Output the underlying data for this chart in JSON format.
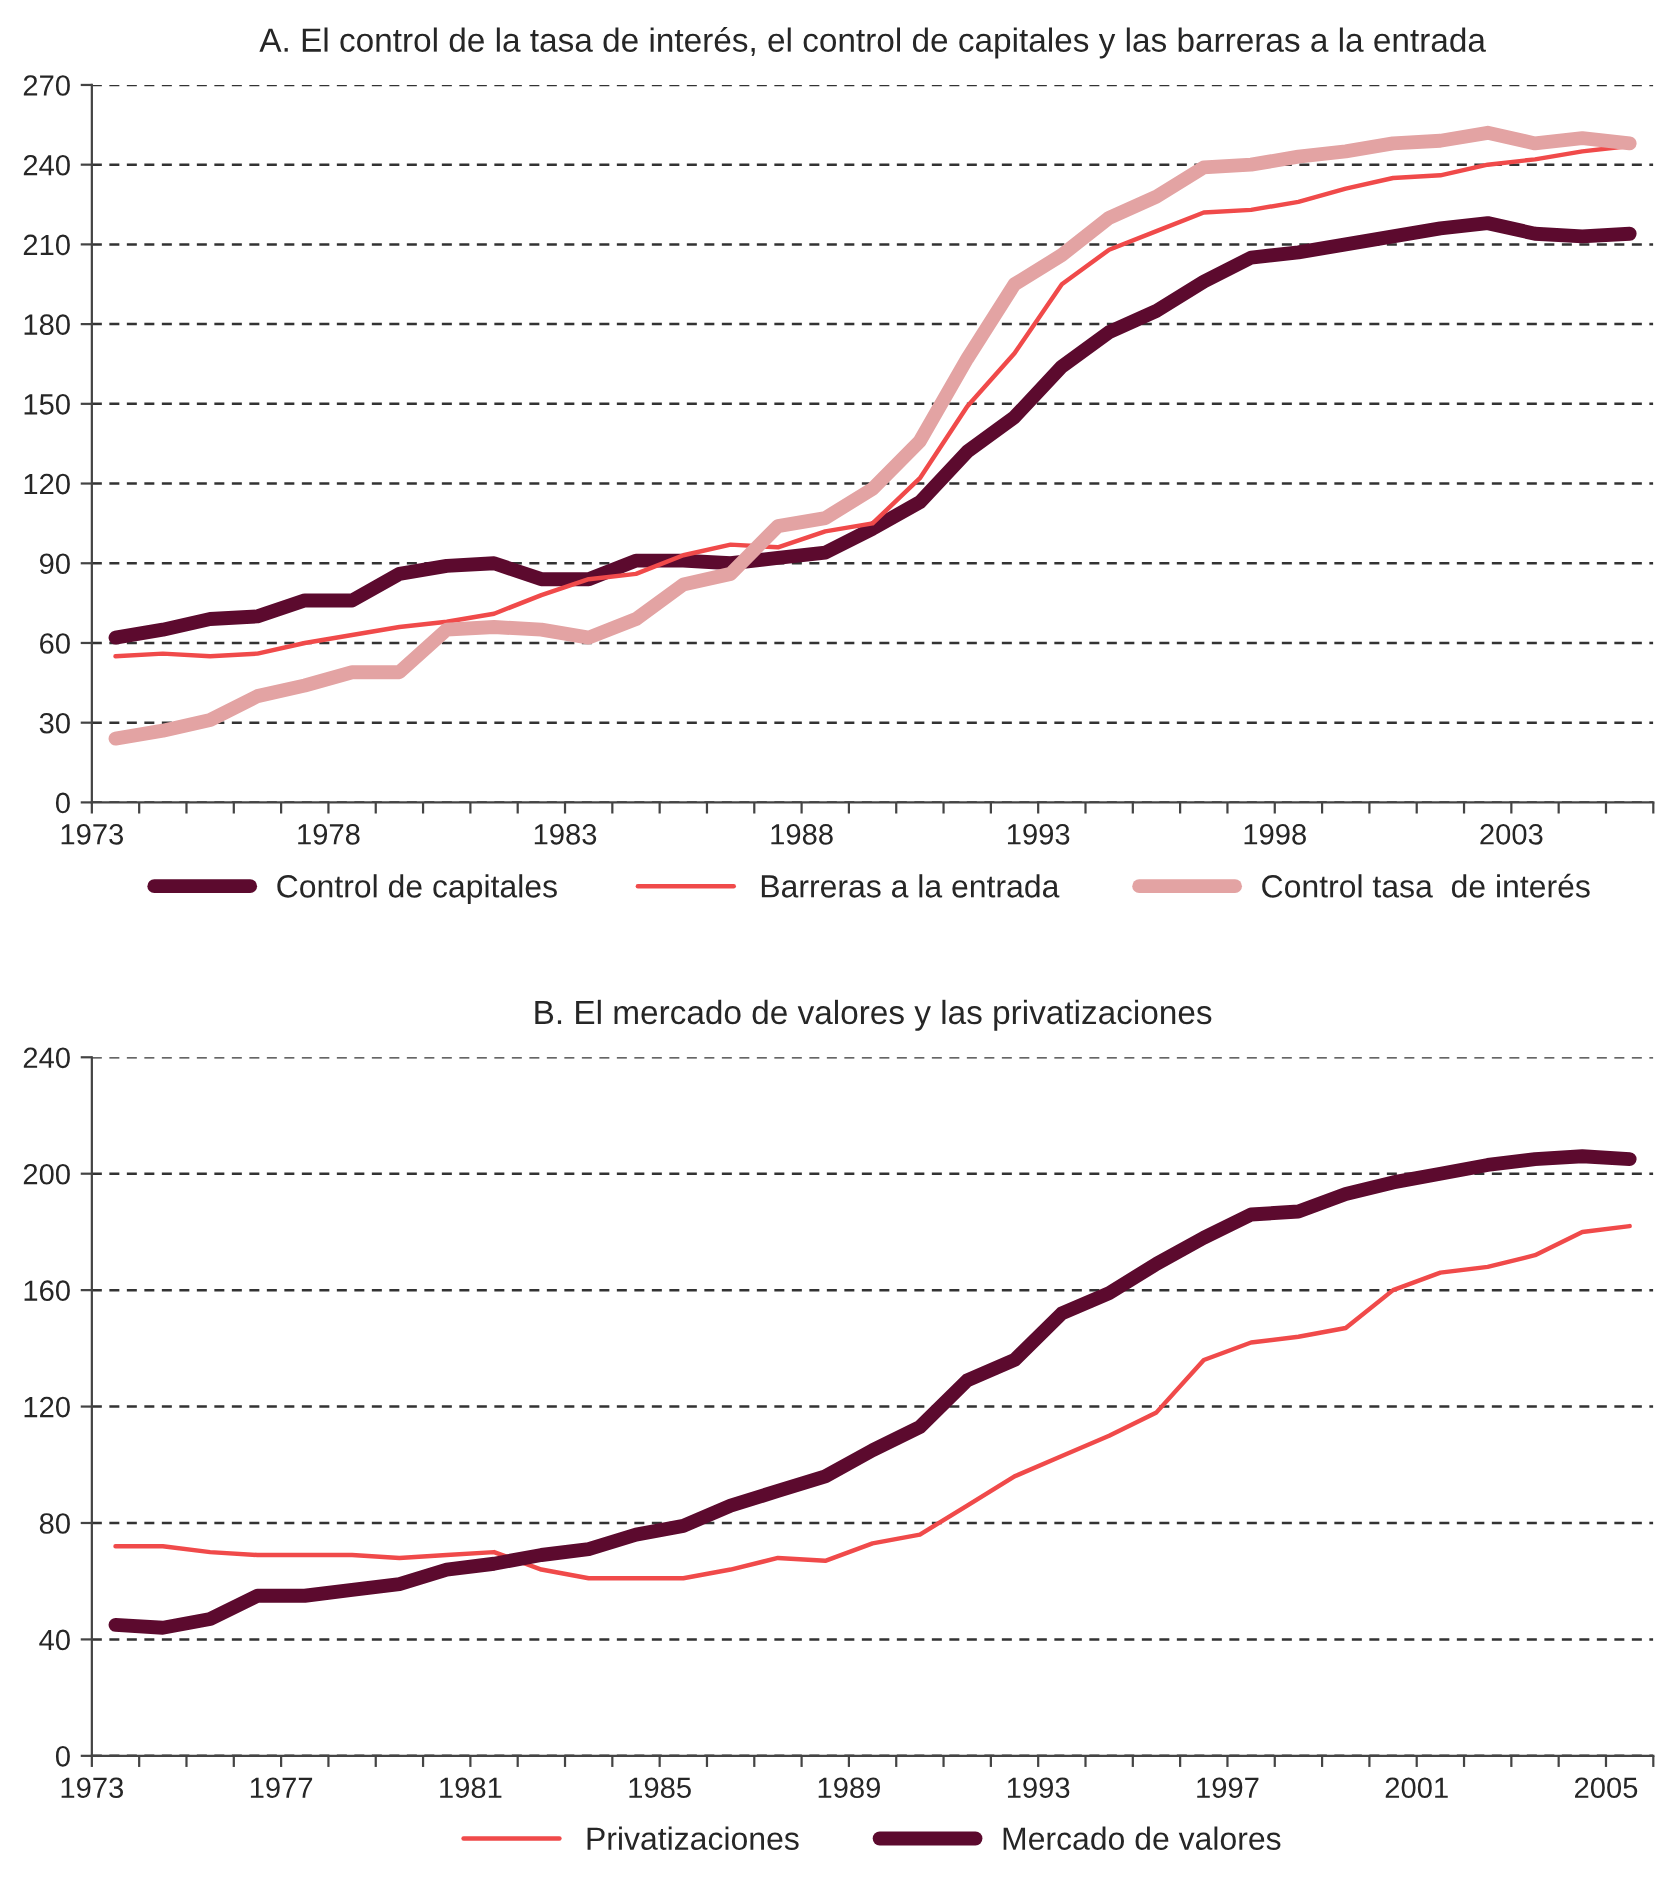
{
  "chart_data": [
    {
      "type": "line",
      "title": "A. El control de la tasa de interés, el control de capitales y las barreras a la entrada",
      "x": [
        1973.5,
        1974.5,
        1975.5,
        1976.5,
        1977.5,
        1978.5,
        1979.5,
        1980.5,
        1981.5,
        1982.5,
        1983.5,
        1984.5,
        1985.5,
        1986.5,
        1987.5,
        1988.5,
        1989.5,
        1990.5,
        1991.5,
        1992.5,
        1993.5,
        1994.5,
        1995.5,
        1996.5,
        1997.5,
        1998.5,
        1999.5,
        2000.5,
        2001.5,
        2002.5,
        2003.5,
        2004.5,
        2005.5
      ],
      "series": [
        {
          "name": "Control de capitales",
          "color": "#5c0a2e",
          "values": [
            62,
            65,
            69,
            70,
            76,
            76,
            86,
            89,
            90,
            84,
            84,
            91,
            91,
            90,
            92,
            94,
            103,
            113,
            132,
            145,
            164,
            177,
            185,
            196,
            205,
            207,
            210,
            213,
            216,
            218,
            214,
            213,
            214
          ]
        },
        {
          "name": "Barreras a la entrada",
          "color": "#f04a4a",
          "values": [
            55,
            56,
            55,
            56,
            60,
            63,
            66,
            68,
            71,
            78,
            84,
            86,
            93,
            97,
            96,
            102,
            105,
            122,
            149,
            169,
            195,
            208,
            215,
            222,
            223,
            226,
            231,
            235,
            236,
            240,
            242,
            245,
            247
          ]
        },
        {
          "name": "Control tasa  de interés",
          "color": "#e3a3a3",
          "values": [
            24,
            27,
            31,
            40,
            44,
            49,
            49,
            65,
            66,
            65,
            62,
            69,
            82,
            86,
            104,
            107,
            118,
            136,
            167,
            195,
            206,
            220,
            228,
            239,
            240,
            243,
            245,
            248,
            249,
            252,
            248,
            250,
            248
          ]
        }
      ],
      "xlim": [
        1973,
        2006
      ],
      "ylim": [
        0,
        270
      ],
      "xticks": [
        1973,
        {
          "value": 1974,
          "label": null
        },
        {
          "value": 1975,
          "label": null
        },
        {
          "value": 1976,
          "label": null
        },
        {
          "value": 1977,
          "label": null
        },
        1978,
        {
          "value": 1979,
          "label": null
        },
        {
          "value": 1980,
          "label": null
        },
        {
          "value": 1981,
          "label": null
        },
        {
          "value": 1982,
          "label": null
        },
        1983,
        {
          "value": 1984,
          "label": null
        },
        {
          "value": 1985,
          "label": null
        },
        {
          "value": 1986,
          "label": null
        },
        {
          "value": 1987,
          "label": null
        },
        1988,
        {
          "value": 1989,
          "label": null
        },
        {
          "value": 1990,
          "label": null
        },
        {
          "value": 1991,
          "label": null
        },
        {
          "value": 1992,
          "label": null
        },
        1993,
        {
          "value": 1994,
          "label": null
        },
        {
          "value": 1995,
          "label": null
        },
        {
          "value": 1996,
          "label": null
        },
        {
          "value": 1997,
          "label": null
        },
        1998,
        {
          "value": 1999,
          "label": null
        },
        {
          "value": 2000,
          "label": null
        },
        {
          "value": 2001,
          "label": null
        },
        {
          "value": 2002,
          "label": null
        },
        2003,
        {
          "value": 2004,
          "label": null
        },
        {
          "value": 2005,
          "label": null
        },
        {
          "value": 2006,
          "label": null
        }
      ],
      "yticks": [
        0,
        30,
        60,
        90,
        120,
        150,
        180,
        210,
        240,
        270
      ],
      "grid": "y",
      "legend": "bottom",
      "marker": "none",
      "line_style": "solid"
    },
    {
      "type": "line",
      "title": "B. El mercado de valores y las privatizaciones",
      "x": [
        1973.5,
        1974.5,
        1975.5,
        1976.5,
        1977.5,
        1978.5,
        1979.5,
        1980.5,
        1981.5,
        1982.5,
        1983.5,
        1984.5,
        1985.5,
        1986.5,
        1987.5,
        1988.5,
        1989.5,
        1990.5,
        1991.5,
        1992.5,
        1993.5,
        1994.5,
        1995.5,
        1996.5,
        1997.5,
        1998.5,
        1999.5,
        2000.5,
        2001.5,
        2002.5,
        2003.5,
        2004.5,
        2005.5
      ],
      "series": [
        {
          "name": "Privatizaciones",
          "color": "#f04a4a",
          "values": [
            72,
            72,
            70,
            69,
            69,
            69,
            68,
            69,
            70,
            64,
            61,
            61,
            61,
            64,
            68,
            67,
            73,
            76,
            86,
            96,
            103,
            110,
            118,
            136,
            142,
            144,
            147,
            160,
            166,
            168,
            172,
            180,
            182
          ]
        },
        {
          "name": "Mercado de valores",
          "color": "#5c0a2e",
          "values": [
            45,
            44,
            47,
            55,
            55,
            57,
            59,
            64,
            66,
            69,
            71,
            76,
            79,
            86,
            91,
            96,
            105,
            113,
            129,
            136,
            152,
            159,
            169,
            178,
            186,
            187,
            193,
            197,
            200,
            203,
            205,
            206,
            205
          ]
        }
      ],
      "xlim": [
        1973,
        2006
      ],
      "ylim": [
        0,
        240
      ],
      "xticks": [
        1973,
        {
          "value": 1974,
          "label": null
        },
        {
          "value": 1975,
          "label": null
        },
        {
          "value": 1976,
          "label": null
        },
        1977,
        {
          "value": 1978,
          "label": null
        },
        {
          "value": 1979,
          "label": null
        },
        {
          "value": 1980,
          "label": null
        },
        1981,
        {
          "value": 1982,
          "label": null
        },
        {
          "value": 1983,
          "label": null
        },
        {
          "value": 1984,
          "label": null
        },
        1985,
        {
          "value": 1986,
          "label": null
        },
        {
          "value": 1987,
          "label": null
        },
        {
          "value": 1988,
          "label": null
        },
        1989,
        {
          "value": 1990,
          "label": null
        },
        {
          "value": 1991,
          "label": null
        },
        {
          "value": 1992,
          "label": null
        },
        1993,
        {
          "value": 1994,
          "label": null
        },
        {
          "value": 1995,
          "label": null
        },
        {
          "value": 1996,
          "label": null
        },
        1997,
        {
          "value": 1998,
          "label": null
        },
        {
          "value": 1999,
          "label": null
        },
        {
          "value": 2000,
          "label": null
        },
        2001,
        {
          "value": 2002,
          "label": null
        },
        {
          "value": 2003,
          "label": null
        },
        {
          "value": 2004,
          "label": null
        },
        2005,
        {
          "value": 2006,
          "label": null
        }
      ],
      "yticks": [
        0,
        40,
        80,
        120,
        160,
        200,
        240
      ],
      "grid": "y",
      "legend": "bottom",
      "marker": "none",
      "line_style": "solid"
    }
  ]
}
